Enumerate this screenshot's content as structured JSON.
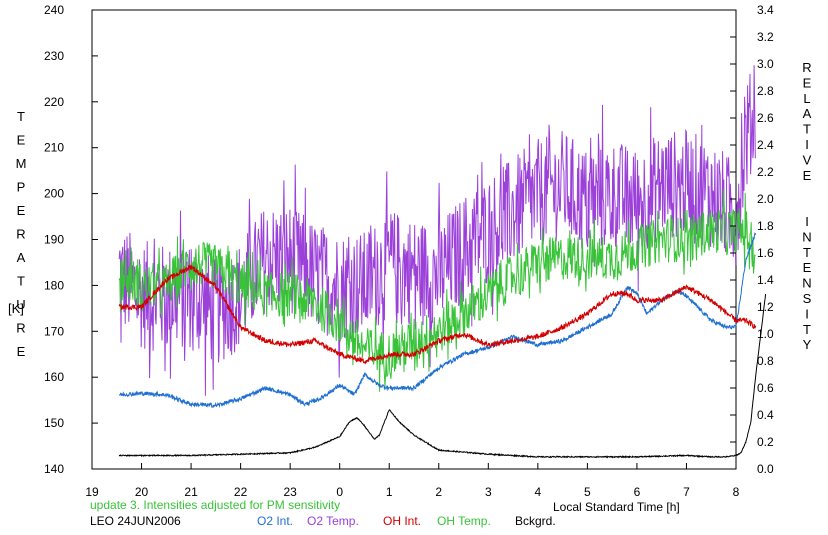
{
  "chart_data": {
    "type": "line",
    "xlabel": "Local Standard Time [h]",
    "ylabel_left": "TEMPERATURE",
    "ylabel_left_unit": "[K]",
    "ylabel_right": "RELATIVE INTENSITY",
    "xlim": [
      19,
      32
    ],
    "ylim_left": [
      140,
      240
    ],
    "ylim_right": [
      0,
      3.4
    ],
    "x_ticks": [
      "19",
      "20",
      "21",
      "22",
      "23",
      "0",
      "1",
      "2",
      "3",
      "4",
      "5",
      "6",
      "7",
      "8"
    ],
    "y_left_ticks": [
      "140",
      "150",
      "160",
      "170",
      "180",
      "190",
      "200",
      "210",
      "220",
      "230",
      "240"
    ],
    "y_right_ticks": [
      "0.0",
      "0.2",
      "0.4",
      "0.6",
      "0.8",
      "1.0",
      "1.2",
      "1.4",
      "1.6",
      "1.8",
      "2.0",
      "2.2",
      "2.4",
      "2.6",
      "2.8",
      "3.0",
      "3.2",
      "3.4"
    ],
    "grid": false,
    "note": "update 3. Intensities adjusted for PM sensitivity",
    "station": "LEO 24JUN2006",
    "series": [
      {
        "name": "O2 Int.",
        "axis": "right",
        "color": "#1f6fd1",
        "noise": 0.015,
        "x": [
          19.55,
          20.0,
          20.5,
          21.0,
          21.5,
          22.0,
          22.5,
          23.0,
          23.3,
          23.6,
          24.0,
          24.3,
          24.5,
          24.8,
          25.0,
          25.5,
          26.0,
          26.5,
          27.0,
          27.5,
          28.0,
          28.5,
          29.0,
          29.5,
          29.8,
          30.0,
          30.2,
          30.5,
          30.8,
          31.0,
          31.5,
          31.8,
          32.0,
          32.2,
          32.4
        ],
        "y": [
          0.55,
          0.56,
          0.55,
          0.48,
          0.47,
          0.52,
          0.6,
          0.55,
          0.48,
          0.52,
          0.62,
          0.55,
          0.7,
          0.62,
          0.6,
          0.6,
          0.75,
          0.85,
          0.9,
          0.98,
          0.92,
          0.95,
          1.05,
          1.15,
          1.35,
          1.3,
          1.15,
          1.25,
          1.32,
          1.28,
          1.1,
          1.05,
          1.05,
          1.55,
          1.75
        ]
      },
      {
        "name": "O2 Temp.",
        "axis": "left",
        "color": "#9b40d8",
        "noise": 12,
        "x": [
          19.55,
          20.0,
          20.5,
          21.0,
          21.5,
          22.0,
          22.5,
          23.0,
          23.5,
          24.0,
          24.5,
          25.0,
          25.5,
          26.0,
          26.5,
          27.0,
          27.5,
          28.0,
          28.5,
          29.0,
          29.5,
          30.0,
          30.5,
          31.0,
          31.5,
          32.0,
          32.2,
          32.4
        ],
        "y": [
          182,
          178,
          177,
          178,
          174,
          178,
          186,
          186,
          182,
          180,
          180,
          185,
          183,
          182,
          188,
          192,
          196,
          200,
          202,
          198,
          200,
          198,
          202,
          202,
          200,
          195,
          212,
          218
        ]
      },
      {
        "name": "OH Int.",
        "axis": "right",
        "color": "#d20000",
        "noise": 0.02,
        "x": [
          19.55,
          20.0,
          20.5,
          21.0,
          21.5,
          22.0,
          22.5,
          23.0,
          23.5,
          24.0,
          24.5,
          25.0,
          25.5,
          26.0,
          26.5,
          27.0,
          27.5,
          28.0,
          28.5,
          29.0,
          29.5,
          29.8,
          30.0,
          30.5,
          31.0,
          31.5,
          32.0,
          32.2,
          32.4
        ],
        "y": [
          1.2,
          1.2,
          1.4,
          1.5,
          1.35,
          1.05,
          0.95,
          0.92,
          0.95,
          0.85,
          0.8,
          0.85,
          0.85,
          0.95,
          1.0,
          0.92,
          0.95,
          0.98,
          1.05,
          1.15,
          1.3,
          1.3,
          1.25,
          1.25,
          1.35,
          1.25,
          1.1,
          1.1,
          1.05
        ]
      },
      {
        "name": "OH Temp.",
        "axis": "left",
        "color": "#38c338",
        "noise": 5,
        "x": [
          19.55,
          20.0,
          20.5,
          21.0,
          21.5,
          22.0,
          22.5,
          23.0,
          23.5,
          24.0,
          24.5,
          25.0,
          25.5,
          26.0,
          26.5,
          27.0,
          27.5,
          28.0,
          28.5,
          29.0,
          29.5,
          30.0,
          30.5,
          31.0,
          31.5,
          32.0,
          32.2,
          32.4
        ],
        "y": [
          182,
          180,
          180,
          185,
          184,
          180,
          178,
          178,
          176,
          172,
          166,
          165,
          168,
          170,
          174,
          178,
          182,
          185,
          186,
          186,
          186,
          188,
          190,
          190,
          192,
          192,
          192,
          186
        ]
      },
      {
        "name": "Bckgrd.",
        "axis": "right",
        "color": "#000000",
        "noise": 0.004,
        "x": [
          19.55,
          20.0,
          21.0,
          22.0,
          23.0,
          23.5,
          24.0,
          24.2,
          24.35,
          24.5,
          24.7,
          24.8,
          25.0,
          25.2,
          25.5,
          26.0,
          27.0,
          28.0,
          29.0,
          30.0,
          31.0,
          31.5,
          31.8,
          32.0,
          32.1,
          32.2,
          32.3,
          32.4,
          32.6
        ],
        "y": [
          0.1,
          0.1,
          0.1,
          0.11,
          0.12,
          0.16,
          0.24,
          0.35,
          0.38,
          0.32,
          0.22,
          0.25,
          0.44,
          0.35,
          0.25,
          0.14,
          0.11,
          0.09,
          0.09,
          0.09,
          0.1,
          0.09,
          0.09,
          0.1,
          0.12,
          0.2,
          0.35,
          0.7,
          1.3
        ]
      }
    ]
  }
}
